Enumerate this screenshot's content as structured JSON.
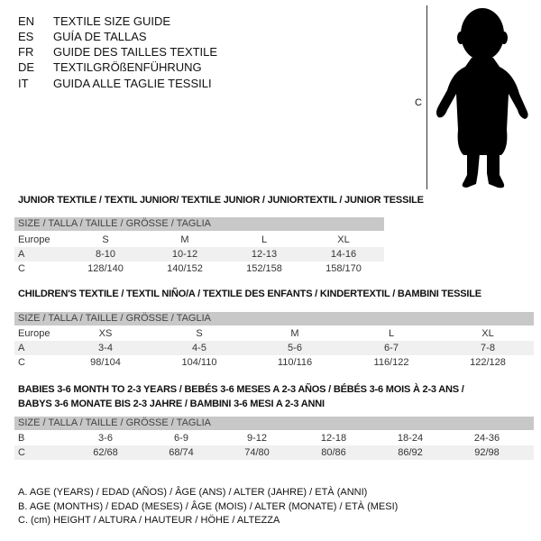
{
  "header": {
    "languages": [
      {
        "code": "EN",
        "title": "TEXTILE SIZE GUIDE"
      },
      {
        "code": "ES",
        "title": "GUÍA DE TALLAS"
      },
      {
        "code": "FR",
        "title": "GUIDE DES TAILLES TEXTILE"
      },
      {
        "code": "DE",
        "title": "TEXTILGRÖßENFÜHRUNG"
      },
      {
        "code": "IT",
        "title": "GUIDA ALLE TAGLIE TESSILI"
      }
    ],
    "figure_label": "C",
    "figure_icon": "child-silhouette-icon"
  },
  "tables": [
    {
      "title": "JUNIOR TEXTILE / TEXTIL JUNIOR/ TEXTILE JUNIOR / JUNIORTEXTIL / JUNIOR TESSILE",
      "header": "SIZE / TALLA / TAILLE / GRÖSSE / TAGLIA",
      "rows": [
        {
          "label": "Europe",
          "cells": [
            "S",
            "M",
            "L",
            "XL"
          ]
        },
        {
          "label": "A",
          "cells": [
            "8-10",
            "10-12",
            "12-13",
            "14-16"
          ]
        },
        {
          "label": "C",
          "cells": [
            "128/140",
            "140/152",
            "152/158",
            "158/170"
          ]
        }
      ]
    },
    {
      "title": "CHILDREN'S TEXTILE / TEXTIL NIÑO/A / TEXTILE DES ENFANTS / KINDERTEXTIL / BAMBINI TESSILE",
      "header": "SIZE / TALLA / TAILLE / GRÖSSE / TAGLIA",
      "rows": [
        {
          "label": "Europe",
          "cells": [
            "XS",
            "S",
            "M",
            "L",
            "XL"
          ]
        },
        {
          "label": "A",
          "cells": [
            "3-4",
            "4-5",
            "5-6",
            "6-7",
            "7-8"
          ]
        },
        {
          "label": "C",
          "cells": [
            "98/104",
            "104/110",
            "110/116",
            "116/122",
            "122/128"
          ]
        }
      ]
    },
    {
      "title": "BABIES 3-6 MONTH TO 2-3 YEARS / BEBÉS 3-6 MESES A 2-3 AÑOS / BÉBÉS 3-6 MOIS À 2-3 ANS /",
      "title2": "BABYS 3-6 MONATE BIS 2-3 JAHRE / BAMBINI 3-6 MESI A 2-3 ANNI",
      "header": "SIZE / TALLA / TAILLE / GRÖSSE / TAGLIA",
      "rows": [
        {
          "label": "B",
          "cells": [
            "3-6",
            "6-9",
            "9-12",
            "12-18",
            "18-24",
            "24-36"
          ]
        },
        {
          "label": "C",
          "cells": [
            "62/68",
            "68/74",
            "74/80",
            "80/86",
            "86/92",
            "92/98"
          ]
        }
      ]
    }
  ],
  "legend": [
    "A. AGE (YEARS) / EDAD (AÑOS) / ÂGE (ANS) / ALTER (JAHRE) / ETÀ (ANNI)",
    "B. AGE (MONTHS) / EDAD (MESES) / ÂGE (MOIS) / ALTER (MONATE) / ETÀ (MESI)",
    "C. (cm) HEIGHT / ALTURA / HAUTEUR / HÖHE / ALTEZZA"
  ]
}
